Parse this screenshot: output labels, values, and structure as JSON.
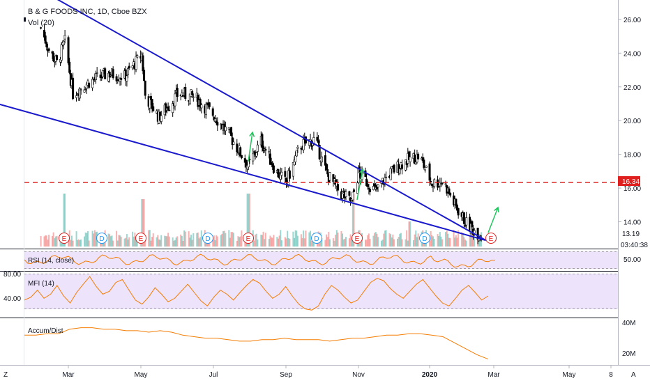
{
  "header": {
    "title": "B & G FOODS INC, 1D, Cboe BZX",
    "volume_label": "Vol (20)"
  },
  "colors": {
    "up_candle": "#ffffff",
    "down_candle": "#000000",
    "trendline": "#1a1acc",
    "support_dashed": "#e0201f",
    "arrow": "#22c55e",
    "vol_up": "#26a69a",
    "vol_down": "#ef5350",
    "rsi_line": "#f57c00",
    "band_fill": "#ede3fa",
    "axis_tag": "#e0201f"
  },
  "axis": {
    "price_ticks": [
      "26.00",
      "24.00",
      "22.00",
      "20.00",
      "18.00",
      "16.00",
      "14.00"
    ],
    "current_price": "16.34",
    "last_price": "13.19",
    "countdown": "03:40:38",
    "x_ticks": [
      "Mar",
      "May",
      "Jul",
      "Sep",
      "Nov",
      "2020",
      "Mar",
      "May",
      "8"
    ],
    "corner_left": "Z",
    "corner_right": "A"
  },
  "events": [
    {
      "label": "E"
    },
    {
      "label": "D"
    },
    {
      "label": "E"
    },
    {
      "label": "D"
    },
    {
      "label": "E"
    },
    {
      "label": "D"
    },
    {
      "label": "E"
    },
    {
      "label": "D"
    },
    {
      "label": "E"
    }
  ],
  "panes": {
    "rsi": {
      "label": "RSI (14, close)",
      "value": "50.00"
    },
    "mfi": {
      "label": "MFI (14)",
      "upper": "80.00",
      "lower": "40.00"
    },
    "accum": {
      "label": "Accum/Dist",
      "upper": "40M",
      "lower": "20M"
    }
  },
  "chart_data": {
    "type": "candlestick",
    "title": "B & G FOODS INC, 1D, Cboe BZX",
    "ylim": [
      12.5,
      27
    ],
    "price_ticks": [
      26,
      24,
      22,
      20,
      18,
      16,
      14
    ],
    "support_level": 16.34,
    "last_price": 13.19,
    "price_path": [
      {
        "date": "2019-02-01",
        "close": 25.5
      },
      {
        "date": "2019-02-08",
        "close": 24.2
      },
      {
        "date": "2019-02-15",
        "close": 23.4
      },
      {
        "date": "2019-02-22",
        "close": 24.7
      },
      {
        "date": "2019-03-01",
        "close": 21.6
      },
      {
        "date": "2019-03-15",
        "close": 22.3
      },
      {
        "date": "2019-04-01",
        "close": 22.8
      },
      {
        "date": "2019-04-15",
        "close": 22.6
      },
      {
        "date": "2019-04-30",
        "close": 23.9
      },
      {
        "date": "2019-05-03",
        "close": 21.5
      },
      {
        "date": "2019-05-15",
        "close": 20.2
      },
      {
        "date": "2019-06-01",
        "close": 21.6
      },
      {
        "date": "2019-06-15",
        "close": 21.4
      },
      {
        "date": "2019-07-01",
        "close": 20.4
      },
      {
        "date": "2019-07-15",
        "close": 19.2
      },
      {
        "date": "2019-08-01",
        "close": 17.3
      },
      {
        "date": "2019-08-12",
        "close": 18.8
      },
      {
        "date": "2019-08-25",
        "close": 17.0
      },
      {
        "date": "2019-09-03",
        "close": 16.3
      },
      {
        "date": "2019-09-15",
        "close": 18.5
      },
      {
        "date": "2019-09-28",
        "close": 18.9
      },
      {
        "date": "2019-10-08",
        "close": 16.9
      },
      {
        "date": "2019-10-20",
        "close": 15.7
      },
      {
        "date": "2019-10-30",
        "close": 15.2
      },
      {
        "date": "2019-11-05",
        "close": 16.9
      },
      {
        "date": "2019-11-20",
        "close": 15.8
      },
      {
        "date": "2019-12-01",
        "close": 16.8
      },
      {
        "date": "2019-12-15",
        "close": 17.6
      },
      {
        "date": "2019-12-28",
        "close": 17.9
      },
      {
        "date": "2020-01-08",
        "close": 16.3
      },
      {
        "date": "2020-01-18",
        "close": 16.4
      },
      {
        "date": "2020-01-28",
        "close": 15.0
      },
      {
        "date": "2020-02-08",
        "close": 13.8
      },
      {
        "date": "2020-02-20",
        "close": 13.19
      }
    ],
    "trendlines": [
      {
        "name": "upper",
        "from": {
          "date": "2019-01-20",
          "price": 28.2
        },
        "to": {
          "date": "2020-02-24",
          "price": 12.9
        }
      },
      {
        "name": "lower",
        "from": {
          "date": "2018-12-20",
          "price": 21.1
        },
        "to": {
          "date": "2020-02-24",
          "price": 12.9
        }
      }
    ],
    "volume": [
      {
        "date": "2019-02-22",
        "relative": 0.95
      },
      {
        "date": "2019-05-01",
        "relative": 0.85
      },
      {
        "date": "2019-08-01",
        "relative": 0.95
      },
      {
        "date": "2019-11-01",
        "relative": 0.95
      },
      {
        "date": "2019-12-20",
        "relative": 0.45
      }
    ],
    "rsi": {
      "levels": [
        70,
        30
      ],
      "value_label": "50.00"
    },
    "mfi": {
      "ylim": [
        20,
        90
      ],
      "ticks": [
        80,
        40
      ],
      "values": [
        45,
        50,
        62,
        48,
        55,
        70,
        52,
        40,
        58,
        72,
        85,
        68,
        55,
        60,
        75,
        80,
        62,
        45,
        38,
        50,
        66,
        55,
        42,
        48,
        60,
        72,
        58,
        44,
        35,
        50,
        62,
        55,
        45,
        58,
        70,
        80,
        74,
        60,
        48,
        55,
        68,
        52,
        38,
        30,
        28,
        35,
        55,
        70,
        62,
        50,
        40,
        45,
        60,
        75,
        82,
        78,
        65,
        55,
        48,
        60,
        72,
        80,
        66,
        52,
        40,
        35,
        48,
        62,
        70,
        58,
        45,
        52
      ]
    },
    "accum_dist": {
      "ylim": [
        15,
        42
      ],
      "ticks": [
        40,
        20
      ],
      "values": [
        33,
        33,
        34,
        34,
        37,
        38,
        38,
        37,
        37,
        36,
        36,
        35,
        36,
        35,
        33,
        32,
        31,
        31,
        30,
        29,
        29,
        30,
        30,
        31,
        30,
        30,
        30,
        29,
        30,
        31,
        31,
        32,
        33,
        33,
        34,
        34,
        33,
        32,
        28,
        24,
        20,
        17
      ]
    }
  }
}
